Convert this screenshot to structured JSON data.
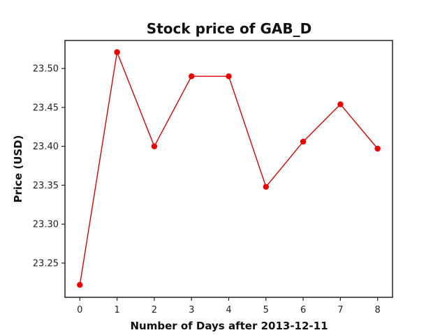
{
  "chart_data": {
    "type": "line",
    "title": "Stock price of GAB_D",
    "xlabel": "Number of Days after 2013-12-11",
    "ylabel": "Price (USD)",
    "x": [
      0,
      1,
      2,
      3,
      4,
      5,
      6,
      7,
      8
    ],
    "series": [
      {
        "values": [
          23.222,
          23.521,
          23.4,
          23.49,
          23.49,
          23.348,
          23.406,
          23.454,
          23.397
        ]
      }
    ],
    "xlim": [
      -0.4,
      8.4
    ],
    "ylim": [
      23.206,
      23.536
    ],
    "xticks": [
      0,
      1,
      2,
      3,
      4,
      5,
      6,
      7,
      8
    ],
    "yticks": [
      23.25,
      23.3,
      23.35,
      23.4,
      23.45,
      23.5
    ],
    "ytick_labels": [
      "23.25",
      "23.30",
      "23.35",
      "23.40",
      "23.45",
      "23.50"
    ],
    "grid": false,
    "line_color": "#dd0000",
    "marker_color": "#ee0000"
  }
}
